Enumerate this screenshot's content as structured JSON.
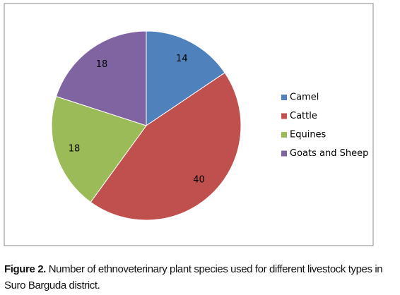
{
  "chart_data": {
    "type": "pie",
    "categories": [
      "Camel",
      "Cattle",
      "Equines",
      "Goats and Sheep"
    ],
    "values": [
      14,
      40,
      18,
      18
    ],
    "colors": [
      "#4f81bd",
      "#c0504d",
      "#9bbb59",
      "#8064a2"
    ],
    "legend": "right"
  },
  "caption": {
    "label": "Figure 2.",
    "text": "Number of ethnoveterinary plant species used for different livestock types in Suro Barguda district."
  }
}
